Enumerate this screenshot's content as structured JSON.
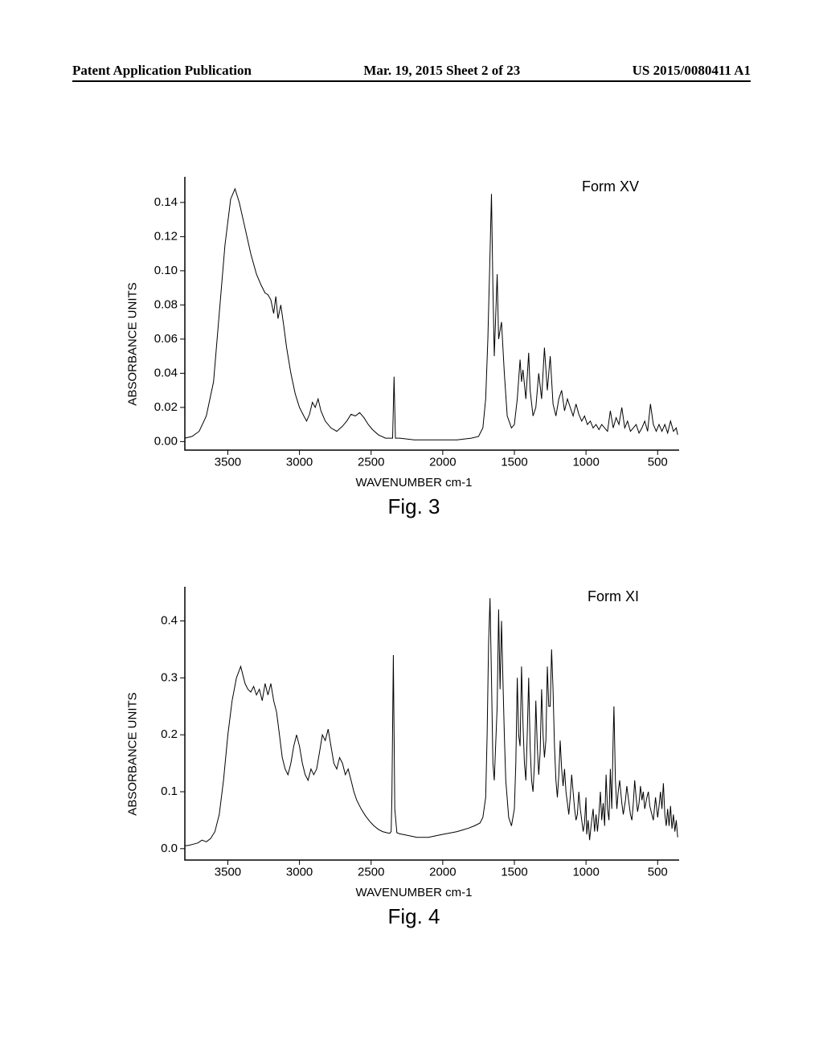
{
  "header": {
    "left": "Patent Application Publication",
    "mid": "Mar. 19, 2015  Sheet 2 of 23",
    "right": "US 2015/0080411 A1"
  },
  "chart1": {
    "type": "line",
    "title": "Fig. 3",
    "form_label": "Form XV",
    "xlabel": "WAVENUMBER cm-1",
    "ylabel": "ABSORBANCE UNITS",
    "xlim": [
      3800,
      350
    ],
    "ylim": [
      -0.005,
      0.155
    ],
    "xticks": [
      3500,
      3000,
      2500,
      2000,
      1500,
      1000,
      500
    ],
    "yticks": [
      0.0,
      0.02,
      0.04,
      0.06,
      0.08,
      0.1,
      0.12,
      0.14
    ],
    "ytick_labels": [
      "0.00",
      "0.02",
      "0.04",
      "0.06",
      "0.08",
      "0.10",
      "0.12",
      "0.14"
    ],
    "line_color": "#000000",
    "background_color": "#ffffff",
    "data": [
      [
        3800,
        0.002
      ],
      [
        3750,
        0.003
      ],
      [
        3700,
        0.006
      ],
      [
        3650,
        0.015
      ],
      [
        3600,
        0.035
      ],
      [
        3560,
        0.075
      ],
      [
        3520,
        0.115
      ],
      [
        3480,
        0.142
      ],
      [
        3450,
        0.148
      ],
      [
        3420,
        0.14
      ],
      [
        3380,
        0.125
      ],
      [
        3340,
        0.11
      ],
      [
        3300,
        0.098
      ],
      [
        3270,
        0.092
      ],
      [
        3240,
        0.087
      ],
      [
        3220,
        0.086
      ],
      [
        3200,
        0.083
      ],
      [
        3180,
        0.075
      ],
      [
        3165,
        0.085
      ],
      [
        3150,
        0.072
      ],
      [
        3130,
        0.08
      ],
      [
        3110,
        0.068
      ],
      [
        3090,
        0.055
      ],
      [
        3060,
        0.04
      ],
      [
        3030,
        0.028
      ],
      [
        3000,
        0.02
      ],
      [
        2970,
        0.015
      ],
      [
        2950,
        0.012
      ],
      [
        2930,
        0.016
      ],
      [
        2910,
        0.023
      ],
      [
        2890,
        0.02
      ],
      [
        2870,
        0.025
      ],
      [
        2850,
        0.018
      ],
      [
        2820,
        0.012
      ],
      [
        2780,
        0.008
      ],
      [
        2740,
        0.006
      ],
      [
        2700,
        0.009
      ],
      [
        2670,
        0.012
      ],
      [
        2640,
        0.016
      ],
      [
        2610,
        0.015
      ],
      [
        2580,
        0.017
      ],
      [
        2550,
        0.014
      ],
      [
        2520,
        0.01
      ],
      [
        2490,
        0.007
      ],
      [
        2450,
        0.004
      ],
      [
        2400,
        0.002
      ],
      [
        2350,
        0.002
      ],
      [
        2340,
        0.038
      ],
      [
        2330,
        0.002
      ],
      [
        2300,
        0.002
      ],
      [
        2200,
        0.001
      ],
      [
        2100,
        0.001
      ],
      [
        2000,
        0.001
      ],
      [
        1900,
        0.001
      ],
      [
        1800,
        0.002
      ],
      [
        1750,
        0.003
      ],
      [
        1720,
        0.008
      ],
      [
        1700,
        0.025
      ],
      [
        1685,
        0.06
      ],
      [
        1670,
        0.11
      ],
      [
        1660,
        0.145
      ],
      [
        1650,
        0.09
      ],
      [
        1640,
        0.05
      ],
      [
        1620,
        0.098
      ],
      [
        1610,
        0.06
      ],
      [
        1590,
        0.07
      ],
      [
        1570,
        0.04
      ],
      [
        1550,
        0.015
      ],
      [
        1520,
        0.008
      ],
      [
        1500,
        0.01
      ],
      [
        1480,
        0.025
      ],
      [
        1460,
        0.048
      ],
      [
        1450,
        0.035
      ],
      [
        1440,
        0.042
      ],
      [
        1420,
        0.025
      ],
      [
        1400,
        0.052
      ],
      [
        1390,
        0.03
      ],
      [
        1370,
        0.015
      ],
      [
        1350,
        0.02
      ],
      [
        1330,
        0.04
      ],
      [
        1310,
        0.025
      ],
      [
        1290,
        0.055
      ],
      [
        1270,
        0.03
      ],
      [
        1250,
        0.05
      ],
      [
        1230,
        0.022
      ],
      [
        1210,
        0.015
      ],
      [
        1190,
        0.025
      ],
      [
        1170,
        0.03
      ],
      [
        1150,
        0.018
      ],
      [
        1130,
        0.025
      ],
      [
        1110,
        0.02
      ],
      [
        1090,
        0.015
      ],
      [
        1070,
        0.022
      ],
      [
        1050,
        0.016
      ],
      [
        1030,
        0.012
      ],
      [
        1010,
        0.015
      ],
      [
        990,
        0.01
      ],
      [
        970,
        0.012
      ],
      [
        950,
        0.008
      ],
      [
        930,
        0.01
      ],
      [
        910,
        0.007
      ],
      [
        890,
        0.01
      ],
      [
        870,
        0.008
      ],
      [
        850,
        0.006
      ],
      [
        830,
        0.018
      ],
      [
        810,
        0.008
      ],
      [
        790,
        0.014
      ],
      [
        770,
        0.01
      ],
      [
        750,
        0.02
      ],
      [
        730,
        0.008
      ],
      [
        710,
        0.012
      ],
      [
        690,
        0.006
      ],
      [
        670,
        0.008
      ],
      [
        650,
        0.01
      ],
      [
        630,
        0.005
      ],
      [
        610,
        0.008
      ],
      [
        590,
        0.012
      ],
      [
        570,
        0.006
      ],
      [
        550,
        0.022
      ],
      [
        530,
        0.01
      ],
      [
        510,
        0.006
      ],
      [
        490,
        0.01
      ],
      [
        470,
        0.006
      ],
      [
        450,
        0.01
      ],
      [
        430,
        0.005
      ],
      [
        410,
        0.012
      ],
      [
        390,
        0.006
      ],
      [
        370,
        0.008
      ],
      [
        360,
        0.004
      ]
    ]
  },
  "chart2": {
    "type": "line",
    "title": "Fig. 4",
    "form_label": "Form XI",
    "xlabel": "WAVENUMBER cm-1",
    "ylabel": "ABSORBANCE UNITS",
    "xlim": [
      3800,
      350
    ],
    "ylim": [
      -0.02,
      0.46
    ],
    "xticks": [
      3500,
      3000,
      2500,
      2000,
      1500,
      1000,
      500
    ],
    "yticks": [
      0.0,
      0.1,
      0.2,
      0.3,
      0.4
    ],
    "ytick_labels": [
      "0.0",
      "0.1",
      "0.2",
      "0.3",
      "0.4"
    ],
    "line_color": "#000000",
    "background_color": "#ffffff",
    "data": [
      [
        3800,
        0.005
      ],
      [
        3770,
        0.006
      ],
      [
        3740,
        0.008
      ],
      [
        3710,
        0.01
      ],
      [
        3680,
        0.015
      ],
      [
        3650,
        0.012
      ],
      [
        3620,
        0.018
      ],
      [
        3590,
        0.03
      ],
      [
        3560,
        0.06
      ],
      [
        3530,
        0.12
      ],
      [
        3500,
        0.2
      ],
      [
        3470,
        0.26
      ],
      [
        3440,
        0.3
      ],
      [
        3410,
        0.32
      ],
      [
        3380,
        0.29
      ],
      [
        3360,
        0.28
      ],
      [
        3340,
        0.275
      ],
      [
        3320,
        0.285
      ],
      [
        3300,
        0.27
      ],
      [
        3280,
        0.28
      ],
      [
        3260,
        0.26
      ],
      [
        3240,
        0.29
      ],
      [
        3220,
        0.27
      ],
      [
        3200,
        0.29
      ],
      [
        3180,
        0.26
      ],
      [
        3160,
        0.24
      ],
      [
        3140,
        0.2
      ],
      [
        3120,
        0.16
      ],
      [
        3100,
        0.14
      ],
      [
        3080,
        0.13
      ],
      [
        3060,
        0.15
      ],
      [
        3040,
        0.18
      ],
      [
        3020,
        0.2
      ],
      [
        3000,
        0.18
      ],
      [
        2980,
        0.15
      ],
      [
        2960,
        0.13
      ],
      [
        2940,
        0.12
      ],
      [
        2920,
        0.14
      ],
      [
        2900,
        0.13
      ],
      [
        2880,
        0.14
      ],
      [
        2860,
        0.17
      ],
      [
        2840,
        0.2
      ],
      [
        2820,
        0.19
      ],
      [
        2800,
        0.21
      ],
      [
        2780,
        0.18
      ],
      [
        2760,
        0.15
      ],
      [
        2740,
        0.14
      ],
      [
        2720,
        0.16
      ],
      [
        2700,
        0.15
      ],
      [
        2680,
        0.13
      ],
      [
        2660,
        0.14
      ],
      [
        2640,
        0.12
      ],
      [
        2620,
        0.1
      ],
      [
        2600,
        0.085
      ],
      [
        2570,
        0.07
      ],
      [
        2540,
        0.058
      ],
      [
        2510,
        0.048
      ],
      [
        2480,
        0.04
      ],
      [
        2450,
        0.034
      ],
      [
        2420,
        0.03
      ],
      [
        2390,
        0.028
      ],
      [
        2370,
        0.027
      ],
      [
        2360,
        0.03
      ],
      [
        2355,
        0.09
      ],
      [
        2345,
        0.34
      ],
      [
        2335,
        0.07
      ],
      [
        2320,
        0.028
      ],
      [
        2300,
        0.026
      ],
      [
        2260,
        0.024
      ],
      [
        2220,
        0.022
      ],
      [
        2180,
        0.02
      ],
      [
        2140,
        0.02
      ],
      [
        2100,
        0.02
      ],
      [
        2060,
        0.022
      ],
      [
        2020,
        0.024
      ],
      [
        1980,
        0.026
      ],
      [
        1940,
        0.028
      ],
      [
        1900,
        0.03
      ],
      [
        1860,
        0.033
      ],
      [
        1820,
        0.036
      ],
      [
        1780,
        0.04
      ],
      [
        1740,
        0.045
      ],
      [
        1720,
        0.055
      ],
      [
        1700,
        0.09
      ],
      [
        1690,
        0.2
      ],
      [
        1680,
        0.36
      ],
      [
        1670,
        0.44
      ],
      [
        1660,
        0.3
      ],
      [
        1650,
        0.15
      ],
      [
        1640,
        0.12
      ],
      [
        1620,
        0.25
      ],
      [
        1610,
        0.42
      ],
      [
        1600,
        0.28
      ],
      [
        1590,
        0.4
      ],
      [
        1580,
        0.3
      ],
      [
        1570,
        0.2
      ],
      [
        1560,
        0.12
      ],
      [
        1540,
        0.055
      ],
      [
        1520,
        0.04
      ],
      [
        1500,
        0.07
      ],
      [
        1490,
        0.15
      ],
      [
        1480,
        0.3
      ],
      [
        1470,
        0.2
      ],
      [
        1460,
        0.18
      ],
      [
        1450,
        0.32
      ],
      [
        1440,
        0.22
      ],
      [
        1430,
        0.15
      ],
      [
        1420,
        0.12
      ],
      [
        1410,
        0.2
      ],
      [
        1400,
        0.3
      ],
      [
        1390,
        0.18
      ],
      [
        1380,
        0.12
      ],
      [
        1370,
        0.1
      ],
      [
        1360,
        0.15
      ],
      [
        1350,
        0.26
      ],
      [
        1340,
        0.18
      ],
      [
        1330,
        0.13
      ],
      [
        1320,
        0.17
      ],
      [
        1310,
        0.28
      ],
      [
        1300,
        0.2
      ],
      [
        1290,
        0.16
      ],
      [
        1280,
        0.19
      ],
      [
        1270,
        0.32
      ],
      [
        1260,
        0.25
      ],
      [
        1250,
        0.25
      ],
      [
        1240,
        0.35
      ],
      [
        1230,
        0.28
      ],
      [
        1220,
        0.18
      ],
      [
        1210,
        0.12
      ],
      [
        1200,
        0.09
      ],
      [
        1190,
        0.13
      ],
      [
        1180,
        0.19
      ],
      [
        1170,
        0.14
      ],
      [
        1160,
        0.11
      ],
      [
        1150,
        0.14
      ],
      [
        1140,
        0.1
      ],
      [
        1130,
        0.08
      ],
      [
        1120,
        0.06
      ],
      [
        1110,
        0.09
      ],
      [
        1100,
        0.13
      ],
      [
        1090,
        0.1
      ],
      [
        1080,
        0.07
      ],
      [
        1070,
        0.05
      ],
      [
        1060,
        0.06
      ],
      [
        1050,
        0.1
      ],
      [
        1040,
        0.07
      ],
      [
        1030,
        0.05
      ],
      [
        1020,
        0.03
      ],
      [
        1010,
        0.045
      ],
      [
        1000,
        0.09
      ],
      [
        995,
        0.025
      ],
      [
        985,
        0.05
      ],
      [
        975,
        0.015
      ],
      [
        965,
        0.04
      ],
      [
        950,
        0.07
      ],
      [
        940,
        0.03
      ],
      [
        930,
        0.06
      ],
      [
        920,
        0.03
      ],
      [
        910,
        0.06
      ],
      [
        900,
        0.1
      ],
      [
        890,
        0.05
      ],
      [
        880,
        0.08
      ],
      [
        870,
        0.04
      ],
      [
        860,
        0.13
      ],
      [
        850,
        0.07
      ],
      [
        840,
        0.05
      ],
      [
        830,
        0.14
      ],
      [
        820,
        0.07
      ],
      [
        810,
        0.2
      ],
      [
        805,
        0.25
      ],
      [
        795,
        0.12
      ],
      [
        785,
        0.07
      ],
      [
        775,
        0.1
      ],
      [
        765,
        0.12
      ],
      [
        750,
        0.08
      ],
      [
        740,
        0.06
      ],
      [
        725,
        0.085
      ],
      [
        715,
        0.11
      ],
      [
        700,
        0.08
      ],
      [
        690,
        0.06
      ],
      [
        680,
        0.05
      ],
      [
        670,
        0.08
      ],
      [
        660,
        0.12
      ],
      [
        650,
        0.09
      ],
      [
        640,
        0.065
      ],
      [
        630,
        0.08
      ],
      [
        620,
        0.11
      ],
      [
        610,
        0.085
      ],
      [
        600,
        0.1
      ],
      [
        590,
        0.07
      ],
      [
        575,
        0.09
      ],
      [
        565,
        0.1
      ],
      [
        555,
        0.075
      ],
      [
        545,
        0.065
      ],
      [
        530,
        0.05
      ],
      [
        515,
        0.09
      ],
      [
        500,
        0.055
      ],
      [
        490,
        0.075
      ],
      [
        480,
        0.1
      ],
      [
        470,
        0.07
      ],
      [
        460,
        0.115
      ],
      [
        450,
        0.06
      ],
      [
        440,
        0.04
      ],
      [
        430,
        0.07
      ],
      [
        420,
        0.04
      ],
      [
        410,
        0.075
      ],
      [
        400,
        0.035
      ],
      [
        390,
        0.06
      ],
      [
        380,
        0.03
      ],
      [
        370,
        0.05
      ],
      [
        360,
        0.02
      ]
    ]
  }
}
